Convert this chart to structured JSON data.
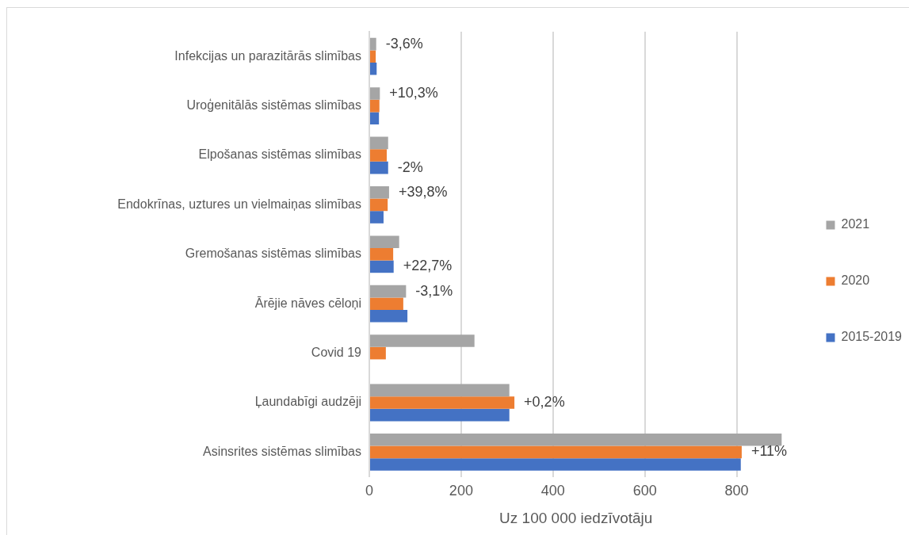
{
  "chart_data": {
    "type": "bar",
    "orientation": "horizontal",
    "xlabel": "Uz 100 000 iedzīvotāju",
    "categories": [
      "Infekcijas un parazitārās slimības",
      "Uroģenitālās sistēmas slimības",
      "Elpošanas sistēmas slimības",
      "Endokrīnas, uztures un vielmaiņas slimības",
      "Gremošanas sistēmas slimības",
      "Ārējie nāves cēloņi",
      "Covid 19",
      "Ļaundabīgi audzēji",
      "Asinsrites sistēmas slimības"
    ],
    "series": [
      {
        "name": "2021",
        "color": "#a5a5a5",
        "values": [
          15,
          23,
          41,
          43,
          65,
          80,
          229,
          305,
          898
        ]
      },
      {
        "name": "2020",
        "color": "#ed7d31",
        "values": [
          14,
          22,
          38,
          40,
          52,
          74,
          36,
          316,
          811
        ]
      },
      {
        "name": "2015-2019",
        "color": "#4472c4",
        "values": [
          16,
          21,
          41,
          31,
          53,
          83,
          null,
          305,
          809
        ]
      }
    ],
    "xlim": [
      0,
      900
    ],
    "xticks": [
      0,
      200,
      400,
      600,
      800
    ],
    "grid": "x",
    "legend": "right",
    "annotations": [
      {
        "text": "-3,6%",
        "x": 15,
        "y": "Infekcijas un parazitārās slimības"
      },
      {
        "text": "+10,3%",
        "x": 23,
        "y": "Uroģenitālās sistēmas slimības"
      },
      {
        "text": "-2%",
        "x": 41,
        "y": "Elpošanas sistēmas slimības"
      },
      {
        "text": "+39,8%",
        "x": 43,
        "y": "Endokrīnas, uztures un vielmaiņas slimības"
      },
      {
        "text": "+22,7%",
        "x": 53,
        "y": "Gremošanas sistēmas slimības"
      },
      {
        "text": "-3,1%",
        "x": 80,
        "y": "Ārējie nāves cēloņi"
      },
      {
        "text": "+0,2%",
        "x": 316,
        "y": "Ļaundabīgi audzēji"
      },
      {
        "text": "+11%",
        "x": 811,
        "y": "Asinsrites sistēmas slimības"
      }
    ]
  }
}
